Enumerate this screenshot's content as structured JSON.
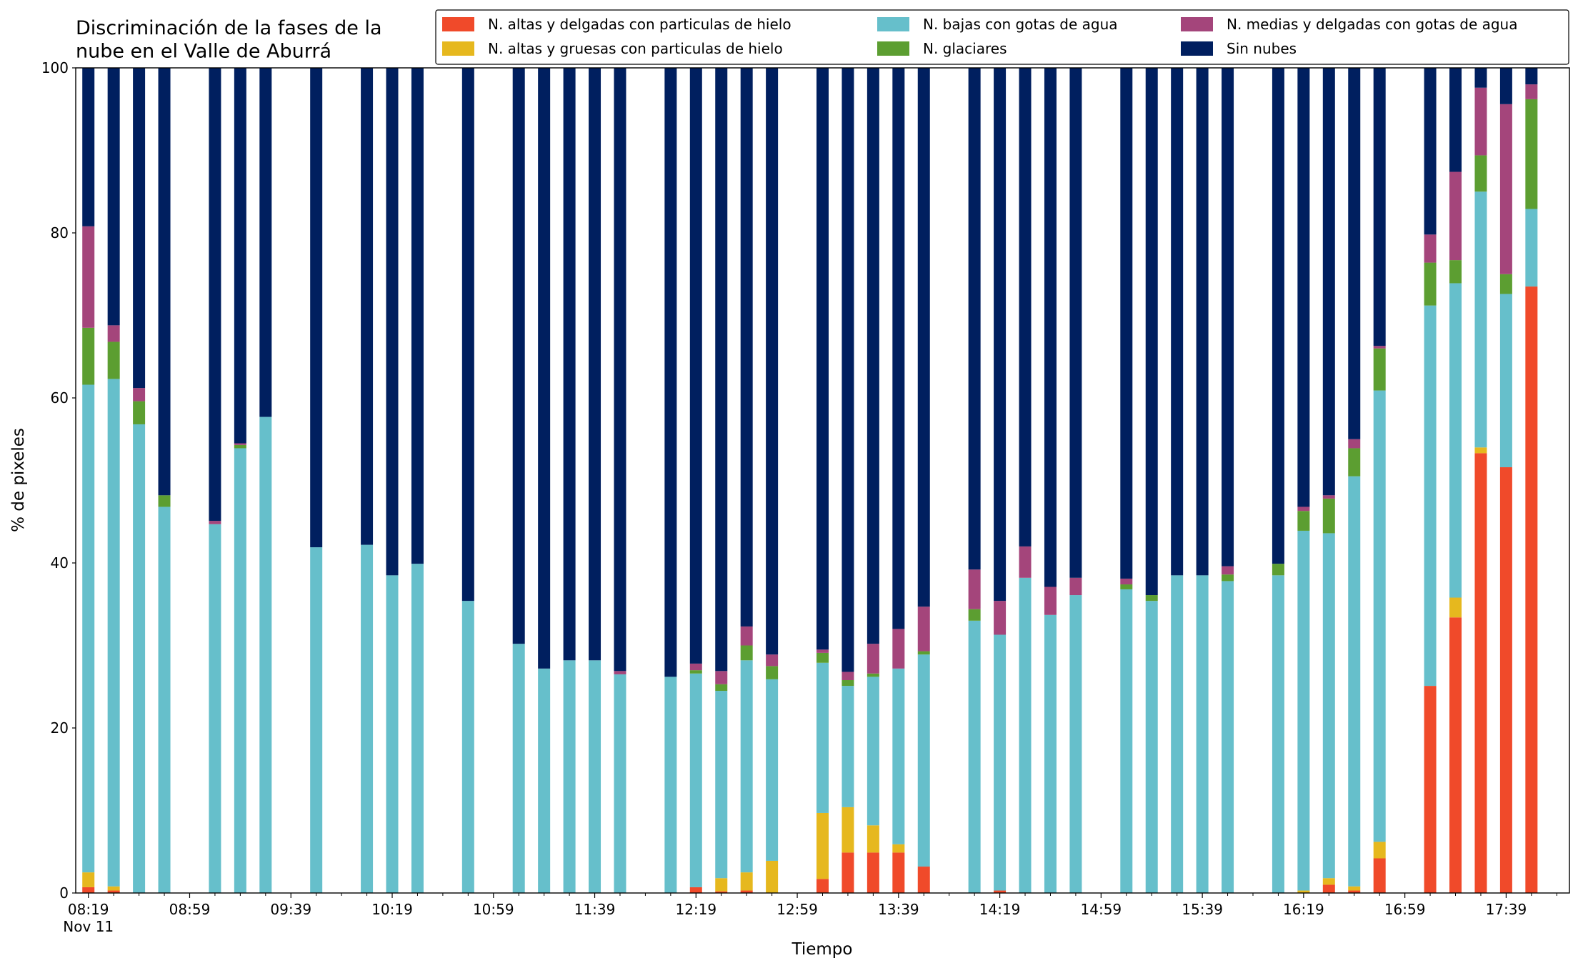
{
  "chart_data": {
    "type": "stacked_bar",
    "title": "Discriminación de la fases de la\nnube en el Valle de Aburrá",
    "xlabel": "Tiempo",
    "ylabel": "% de pixeles",
    "x": [
      "08:19",
      "08:29",
      "08:39",
      "08:49",
      "09:09",
      "09:19",
      "09:29",
      "09:49",
      "10:09",
      "10:19",
      "10:29",
      "10:49",
      "11:09",
      "11:19",
      "11:29",
      "11:39",
      "11:49",
      "12:09",
      "12:19",
      "12:29",
      "12:39",
      "12:49",
      "13:09",
      "13:19",
      "13:29",
      "13:39",
      "13:49",
      "14:09",
      "14:19",
      "14:29",
      "14:39",
      "14:49",
      "15:09",
      "15:19",
      "15:29",
      "15:39",
      "15:49",
      "16:09",
      "16:19",
      "16:29",
      "16:39",
      "16:49",
      "17:09",
      "17:19",
      "17:29",
      "17:39",
      "17:49"
    ],
    "series": [
      {
        "name": "N. altas y delgadas con particulas de hielo",
        "color": "#f04a2a",
        "values": [
          0.7,
          0.3,
          0,
          0,
          0,
          0,
          0,
          0,
          0,
          0,
          0,
          0,
          0,
          0,
          0,
          0,
          0,
          0,
          0.7,
          0.2,
          0.3,
          0,
          1.7,
          4.9,
          4.9,
          4.9,
          3.2,
          0,
          0.3,
          0,
          0,
          0,
          0,
          0,
          0,
          0,
          0,
          0,
          0,
          1.0,
          0.3,
          4.2,
          25.1,
          33.4,
          53.3,
          51.6,
          73.5
        ]
      },
      {
        "name": "N. altas y gruesas con particulas de hielo",
        "color": "#e6b81e",
        "values": [
          1.8,
          0.5,
          0,
          0,
          0,
          0,
          0,
          0,
          0,
          0,
          0,
          0,
          0,
          0,
          0,
          0,
          0,
          0,
          0,
          1.6,
          2.2,
          3.9,
          8.0,
          5.5,
          3.3,
          1.0,
          0,
          0,
          0,
          0,
          0,
          0,
          0,
          0,
          0,
          0,
          0,
          0,
          0.3,
          0.8,
          0.5,
          2.0,
          0,
          2.4,
          0.7,
          0,
          0
        ]
      },
      {
        "name": "N. bajas con gotas de agua",
        "color": "#66bfcb",
        "values": [
          59.1,
          61.5,
          56.8,
          46.8,
          44.7,
          53.9,
          57.7,
          41.9,
          42.2,
          38.5,
          39.9,
          35.4,
          30.2,
          27.2,
          28.2,
          28.2,
          26.5,
          26.2,
          25.9,
          22.7,
          25.7,
          22.0,
          18.2,
          14.7,
          18.0,
          21.3,
          25.7,
          33.0,
          31.0,
          38.2,
          33.7,
          36.1,
          36.8,
          35.4,
          38.5,
          38.5,
          37.8,
          38.5,
          43.6,
          41.8,
          49.7,
          54.7,
          46.1,
          38.1,
          31.0,
          21.0,
          9.4
        ]
      },
      {
        "name": "N. glaciares",
        "color": "#5c9e31",
        "values": [
          6.9,
          4.5,
          2.8,
          1.4,
          0,
          0.4,
          0,
          0,
          0,
          0,
          0,
          0,
          0,
          0,
          0,
          0,
          0,
          0,
          0.4,
          0.8,
          1.8,
          1.6,
          1.2,
          0.7,
          0.4,
          0,
          0.4,
          1.4,
          0,
          0,
          0,
          0,
          0.6,
          0.7,
          0,
          0,
          0.8,
          1.4,
          2.4,
          4.2,
          3.4,
          5.1,
          5.2,
          2.8,
          4.4,
          2.4,
          13.3
        ]
      },
      {
        "name": "N. medias y delgadas con gotas de agua",
        "color": "#a4457b",
        "values": [
          12.3,
          2.0,
          1.6,
          0,
          0.4,
          0.2,
          0,
          0,
          0,
          0,
          0,
          0,
          0,
          0,
          0,
          0,
          0.4,
          0,
          0.8,
          1.6,
          2.3,
          1.4,
          0.4,
          1.0,
          3.6,
          4.8,
          5.4,
          4.8,
          4.1,
          3.8,
          3.4,
          2.1,
          0.7,
          0,
          0,
          0,
          1.0,
          0,
          0.5,
          0.4,
          1.1,
          0.3,
          3.4,
          10.7,
          8.2,
          20.6,
          1.8
        ]
      },
      {
        "name": "Sin nubes",
        "color": "#001f5f",
        "values": [
          19.2,
          31.2,
          38.8,
          51.8,
          54.9,
          45.5,
          42.3,
          58.1,
          57.8,
          61.5,
          60.1,
          64.6,
          69.8,
          72.8,
          71.8,
          71.8,
          73.1,
          73.8,
          72.2,
          73.1,
          67.7,
          71.1,
          70.5,
          73.2,
          69.8,
          68.0,
          65.3,
          60.8,
          64.6,
          58.0,
          62.9,
          61.8,
          61.9,
          63.9,
          61.5,
          61.5,
          60.4,
          60.1,
          53.2,
          51.8,
          45.0,
          33.7,
          20.2,
          12.6,
          2.4,
          4.4,
          2.0
        ]
      }
    ],
    "xlim": [
      "08:14",
      "18:04"
    ],
    "xticks": [
      {
        "value": "08:19",
        "label": "08:19\nNov 11"
      },
      "08:59",
      "09:39",
      "10:19",
      "10:59",
      "11:39",
      "12:19",
      "12:59",
      "13:39",
      "14:19",
      "14:59",
      "15:39",
      "16:19",
      "16:59",
      "17:39"
    ],
    "xticks_minor": [
      "08:29",
      "08:39",
      "08:49",
      "09:09",
      "09:19",
      "09:29",
      "09:49",
      "09:59",
      "10:09",
      "10:29",
      "10:39",
      "10:49",
      "11:09",
      "11:19",
      "11:29",
      "11:49",
      "11:59",
      "12:09",
      "12:29",
      "12:39",
      "12:49",
      "13:09",
      "13:19",
      "13:29",
      "13:49",
      "13:59",
      "14:09",
      "14:29",
      "14:39",
      "14:49",
      "15:09",
      "15:19",
      "15:29",
      "15:49",
      "15:59",
      "16:09",
      "16:29",
      "16:39",
      "16:49",
      "17:09",
      "17:19",
      "17:29",
      "17:49",
      "17:59"
    ],
    "ylim": [
      0,
      100
    ],
    "yticks": [
      0,
      20,
      40,
      60,
      80,
      100
    ],
    "legend": "upper right"
  }
}
